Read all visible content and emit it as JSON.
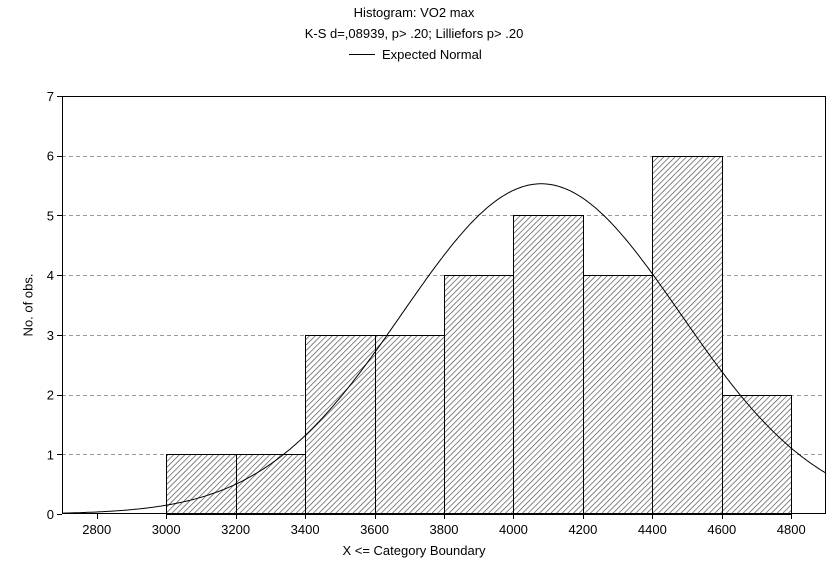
{
  "chart_data": {
    "type": "bar",
    "title": "Histogram: VO2 max",
    "subtitle": "K-S d=,08939, p> .20; Lilliefors p> .20",
    "legend": [
      "Expected Normal"
    ],
    "xlabel": "X <= Category Boundary",
    "ylabel": "No. of obs.",
    "xlim": [
      2700,
      4900
    ],
    "ylim": [
      0,
      7
    ],
    "x_ticks": [
      2800,
      3000,
      3200,
      3400,
      3600,
      3800,
      4000,
      4200,
      4400,
      4600,
      4800
    ],
    "y_ticks": [
      0,
      1,
      2,
      3,
      4,
      5,
      6,
      7
    ],
    "grid": "horizontal dashed",
    "bins": [
      {
        "from": 3000,
        "to": 3200,
        "count": 1
      },
      {
        "from": 3200,
        "to": 3400,
        "count": 1
      },
      {
        "from": 3400,
        "to": 3600,
        "count": 3
      },
      {
        "from": 3600,
        "to": 3800,
        "count": 3
      },
      {
        "from": 3800,
        "to": 4000,
        "count": 4
      },
      {
        "from": 4000,
        "to": 4200,
        "count": 5
      },
      {
        "from": 4200,
        "to": 4400,
        "count": 4
      },
      {
        "from": 4400,
        "to": 4600,
        "count": 6
      },
      {
        "from": 4600,
        "to": 4800,
        "count": 2
      }
    ],
    "expected_normal": {
      "mean": 4080,
      "peak": 5.53,
      "sd": 401
    }
  }
}
